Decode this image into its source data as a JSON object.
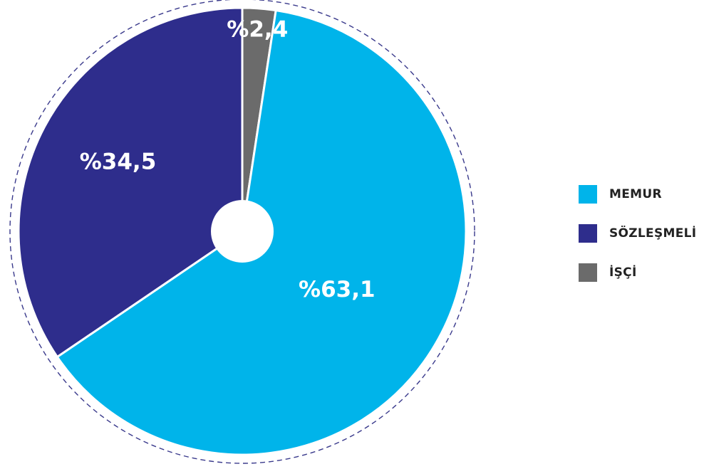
{
  "chart_data": {
    "type": "pie",
    "categories": [
      "MEMUR",
      "SÖZLEŞMELİ",
      "İŞÇİ"
    ],
    "values": [
      63.1,
      34.5,
      2.4
    ],
    "labels": [
      "%63,1",
      "%34,5",
      "%2,4"
    ],
    "colors": [
      "#00b4ea",
      "#2e2d8c",
      "#6b6b6b"
    ],
    "legend": "right",
    "hole": true,
    "outline": "dashed"
  }
}
